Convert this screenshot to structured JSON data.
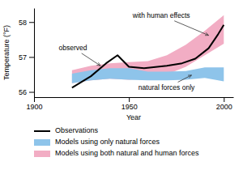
{
  "chart_data": {
    "type": "line",
    "title": "",
    "xlabel": "Year",
    "ylabel": "Temperature (°F)",
    "xlim": [
      1900,
      2005
    ],
    "ylim": [
      55.85,
      58.4
    ],
    "xticks": [
      1900,
      1950,
      2000
    ],
    "yticks": [
      56,
      57,
      58
    ],
    "grid": false,
    "legend": "bottom",
    "series": [
      {
        "name": "Observations",
        "type": "line",
        "color": "#000000",
        "x": [
          1920,
          1930,
          1938,
          1944,
          1950,
          1958,
          1965,
          1970,
          1978,
          1985,
          1992,
          1997,
          2000
        ],
        "values": [
          56.12,
          56.45,
          56.82,
          57.05,
          56.72,
          56.68,
          56.72,
          56.75,
          56.82,
          56.95,
          57.25,
          57.65,
          57.92
        ]
      },
      {
        "name": "Models using only natural forces",
        "type": "band",
        "color": "#8ec4ea",
        "x": [
          1920,
          1930,
          1940,
          1950,
          1960,
          1970,
          1980,
          1990,
          2000
        ],
        "lower": [
          56.25,
          56.33,
          56.38,
          56.35,
          56.33,
          56.33,
          56.35,
          56.4,
          56.3
        ],
        "upper": [
          56.52,
          56.62,
          56.68,
          56.68,
          56.58,
          56.58,
          56.6,
          56.7,
          56.7
        ]
      },
      {
        "name": "Models using both natural and human forces",
        "type": "band",
        "color": "#f2adc4",
        "x": [
          1920,
          1930,
          1940,
          1950,
          1960,
          1970,
          1980,
          1990,
          2000
        ],
        "lower": [
          56.25,
          56.33,
          56.38,
          56.35,
          56.38,
          56.5,
          56.72,
          57.05,
          57.38
        ],
        "upper": [
          56.62,
          56.75,
          56.82,
          56.85,
          56.88,
          57.05,
          57.35,
          57.75,
          58.2
        ]
      }
    ],
    "annotations": [
      {
        "text": "observed",
        "x": 1935,
        "y": 56.75,
        "text_x": 1913,
        "text_y": 57.25
      },
      {
        "text": "with human effects",
        "x": 1992,
        "y": 57.62,
        "text_x": 1952,
        "text_y": 58.18
      },
      {
        "text": "natural forces only",
        "x": 1983,
        "y": 56.48,
        "text_x": 1955,
        "text_y": 56.1
      }
    ]
  }
}
